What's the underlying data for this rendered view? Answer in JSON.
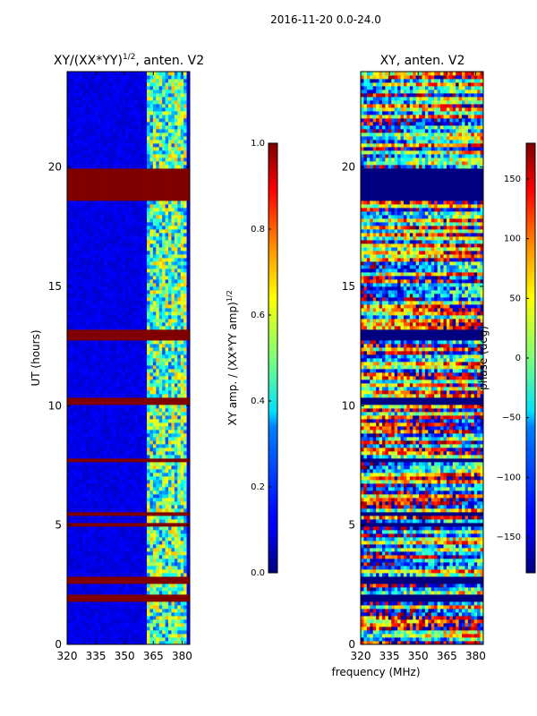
{
  "suptitle": "2016-11-20 0.0-24.0",
  "shared_xlabel": "frequency (MHz)",
  "chart_data": [
    {
      "type": "heatmap",
      "title": "XY/(XX*YY)^1/2, anten. V2",
      "title_main": "XY/(XX*YY)",
      "title_sup": "1/2",
      "title_tail": ", anten. V2",
      "xlabel": "frequency (MHz)",
      "ylabel": "UT (hours)",
      "xlim": [
        320,
        384
      ],
      "ylim": [
        0,
        24
      ],
      "xticks": [
        320,
        335,
        350,
        365,
        380
      ],
      "yticks": [
        0,
        5,
        10,
        15,
        20
      ],
      "colormap": "jet",
      "colorbar": {
        "label": "XY amp. / (XX*YY amp)^1/2",
        "label_main": "XY amp. / (XX*YY amp)",
        "label_sup": "1/2",
        "range": [
          0.0,
          1.0
        ],
        "ticks": [
          "0.0",
          "0.2",
          "0.4",
          "0.6",
          "0.8",
          "1.0"
        ],
        "tick_values": [
          0.0,
          0.2,
          0.4,
          0.6,
          0.8,
          1.0
        ]
      },
      "flagged_hour_bands": [
        [
          18.6,
          20.0
        ],
        [
          12.8,
          13.2
        ],
        [
          10.1,
          10.4
        ],
        [
          7.6,
          7.8
        ],
        [
          5.4,
          5.6
        ],
        [
          4.9,
          5.1
        ],
        [
          2.6,
          2.8
        ],
        [
          1.8,
          2.1
        ]
      ],
      "flagged_value": 1.0,
      "background_value": 0.07,
      "active_band_mhz": [
        361,
        382
      ],
      "active_band_value_range": [
        0.2,
        0.7
      ]
    },
    {
      "type": "heatmap",
      "title": "XY, anten. V2",
      "xlabel": "frequency (MHz)",
      "ylabel": "",
      "xlim": [
        320,
        384
      ],
      "ylim": [
        0,
        24
      ],
      "xticks": [
        320,
        335,
        350,
        365,
        380
      ],
      "yticks": [
        0,
        5,
        10,
        15,
        20
      ],
      "colormap": "jet",
      "colorbar": {
        "label": "phase (deg)",
        "range": [
          -180,
          180
        ],
        "ticks": [
          "−150",
          "−100",
          "−50",
          "0",
          "50",
          "100",
          "150"
        ],
        "tick_values": [
          -150,
          -100,
          -50,
          0,
          50,
          100,
          150
        ]
      },
      "flagged_hour_bands": [
        [
          18.6,
          20.0
        ],
        [
          12.8,
          13.2
        ],
        [
          10.1,
          10.4
        ],
        [
          7.6,
          7.8
        ],
        [
          5.4,
          5.6
        ],
        [
          4.9,
          5.1
        ],
        [
          2.6,
          2.8
        ],
        [
          1.8,
          2.1
        ]
      ],
      "flagged_value": -180,
      "value_range": [
        -180,
        180
      ]
    }
  ]
}
